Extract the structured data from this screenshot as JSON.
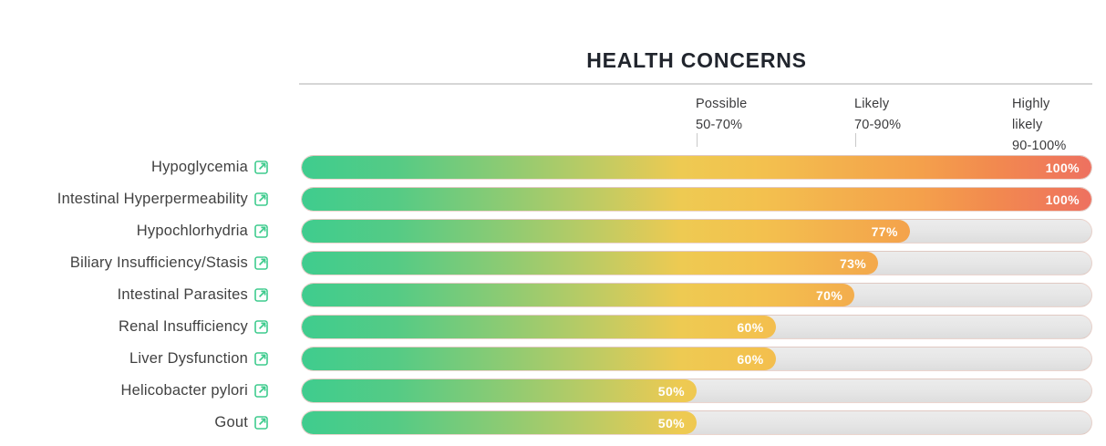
{
  "title": "HEALTH CONCERNS",
  "chart_data": {
    "type": "bar",
    "orientation": "horizontal",
    "title": "HEALTH CONCERNS",
    "categories": [
      "Hypoglycemia",
      "Intestinal Hyperpermeability",
      "Hypochlorhydria",
      "Biliary Insufficiency/Stasis",
      "Intestinal Parasites",
      "Renal Insufficiency",
      "Liver Dysfunction",
      "Helicobacter pylori",
      "Gout"
    ],
    "values": [
      100,
      100,
      77,
      73,
      70,
      60,
      60,
      50,
      50
    ],
    "value_labels": [
      "100%",
      "100%",
      "77%",
      "73%",
      "70%",
      "60%",
      "60%",
      "50%",
      "50%"
    ],
    "xlim": [
      0,
      100
    ],
    "grid": false,
    "legend_position": "none",
    "thresholds": [
      {
        "lines": [
          "Possible",
          "50-70%"
        ],
        "pct": 50,
        "tick": true
      },
      {
        "lines": [
          "Likely",
          "70-90%"
        ],
        "pct": 70,
        "tick": true
      },
      {
        "lines": [
          "Highly",
          "likely",
          "90-100%"
        ],
        "pct": 90,
        "tick": false
      }
    ]
  },
  "icons": {
    "external_link": "external-link-icon"
  },
  "colors": {
    "bar_gradient_start": "#3fcc8e",
    "bar_gradient_yellow": "#eeca52",
    "bar_gradient_orange": "#f4a14b",
    "bar_gradient_end": "#ee7160",
    "track": "#e6e6e6",
    "track_border_tint": "#ee8466",
    "link_icon": "#3ecb8d",
    "title_text": "#21252d",
    "label_text": "#414141",
    "threshold_text": "#3a3a3c",
    "value_text": "#ffffff",
    "rule": "#d6d6d6"
  }
}
